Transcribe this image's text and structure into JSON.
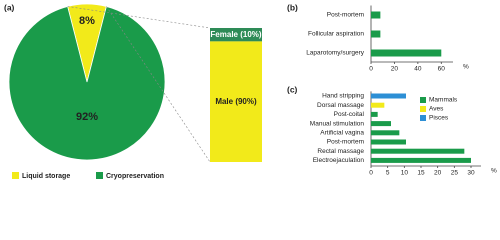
{
  "chart_data": [
    {
      "type": "pie",
      "panel": "(a)",
      "categories": [
        "Liquid storage",
        "Cryopreservation"
      ],
      "values": [
        8,
        92
      ],
      "value_labels": [
        "8%",
        "92%"
      ],
      "colors": [
        "#f2ea1a",
        "#1a9b4a"
      ],
      "legend": "bottom"
    },
    {
      "type": "stacked_bar",
      "values": [
        10,
        90
      ],
      "value_labels": [
        "Female (10%)",
        "Male (90%)"
      ],
      "colors": [
        "#2e8b57",
        "#f2ea1a"
      ]
    },
    {
      "type": "hbar",
      "panel": "(b)",
      "categories": [
        "Post-mortem",
        "Follicular aspiration",
        "Laparotomy/surgery"
      ],
      "values": [
        8,
        8,
        60
      ],
      "color": "#1a9b4a",
      "xlim": [
        0,
        70
      ],
      "xticks": [
        0,
        20,
        40,
        60
      ],
      "xlabel": "%"
    },
    {
      "type": "hbar",
      "panel": "(c)",
      "categories": [
        "Hand stripping",
        "Dorsal massage",
        "Post-coital",
        "Manual stimulation",
        "Artificial vagina",
        "Post-mortem",
        "Rectal massage",
        "Electroejaculation"
      ],
      "series": [
        {
          "name": "Mammals",
          "color": "#1a9b4a",
          "values": [
            null,
            null,
            2,
            6,
            8.5,
            10.5,
            28,
            30
          ]
        },
        {
          "name": "Aves",
          "color": "#f2ea1a",
          "values": [
            null,
            4,
            null,
            null,
            null,
            null,
            null,
            null
          ]
        },
        {
          "name": "Pisces",
          "color": "#2d8fd5",
          "values": [
            10.5,
            null,
            null,
            null,
            null,
            null,
            null,
            null
          ]
        }
      ],
      "xlim": [
        0,
        33
      ],
      "xticks": [
        0,
        5,
        10,
        15,
        20,
        25,
        30
      ],
      "xlabel": "%",
      "legend": "upper right"
    }
  ]
}
